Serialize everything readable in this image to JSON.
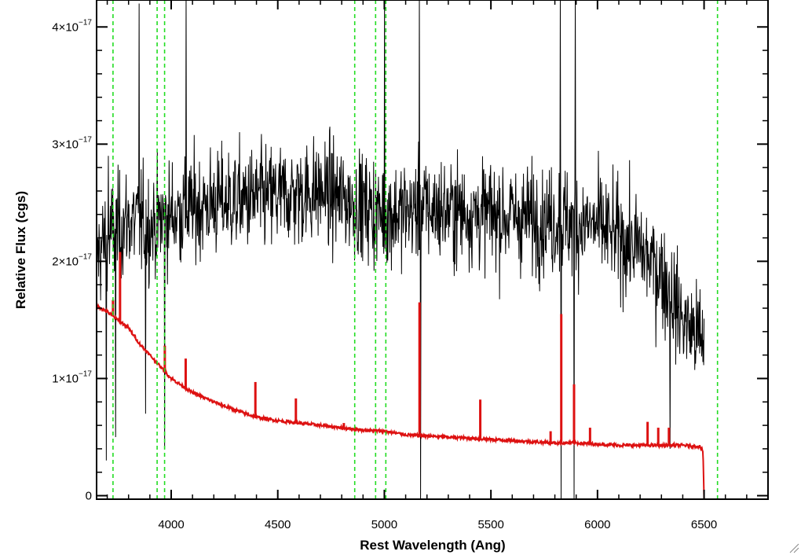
{
  "chart_data": {
    "type": "line",
    "xlabel": "Rest Wavelength (Ang)",
    "ylabel": "Relative Flux (cgs)",
    "xlim": [
      3650,
      6800
    ],
    "ylim": [
      -3e-19,
      4.23e-17
    ],
    "x_ticks": [
      4000,
      4500,
      5000,
      5500,
      6000,
      6500
    ],
    "x_tick_labels": [
      "4000",
      "4500",
      "5000",
      "5500",
      "6000",
      "6500"
    ],
    "y_ticks": [
      0,
      1e-17,
      2e-17,
      3e-17,
      4e-17
    ],
    "y_tick_labels": [
      {
        "zero": "0"
      },
      {
        "mantissa": "1×10",
        "exponent": "−17"
      },
      {
        "mantissa": "2×10",
        "exponent": "−17"
      },
      {
        "mantissa": "3×10",
        "exponent": "−17"
      },
      {
        "mantissa": "4×10",
        "exponent": "−17"
      }
    ],
    "colors": {
      "observed": "#000000",
      "model": "#dd1111",
      "lines": "#22dd22"
    },
    "grid": false,
    "series": [
      {
        "style": "noisy",
        "color": "#000000",
        "x_range": [
          3650,
          6500
        ],
        "envelope": {
          "x": [
            3650,
            3700,
            3800,
            3900,
            4000,
            4200,
            4500,
            4700,
            5000,
            5200,
            5500,
            5800,
            6000,
            6200,
            6300,
            6400,
            6500
          ],
          "y": [
            2.05e-17,
            2.2e-17,
            2.35e-17,
            2.3e-17,
            2.4e-17,
            2.5e-17,
            2.55e-17,
            2.6e-17,
            2.4e-17,
            2.45e-17,
            2.4e-17,
            2.35e-17,
            2.3e-17,
            2.1e-17,
            1.9e-17,
            1.5e-17,
            1.3e-17
          ]
        },
        "spikes": [
          {
            "x": 3695,
            "y": 3e-18
          },
          {
            "x": 3705,
            "y": 2.9e-17
          },
          {
            "x": 3740,
            "y": 5e-18
          },
          {
            "x": 3850,
            "y": 4.2e-17
          },
          {
            "x": 3880,
            "y": 7e-18
          },
          {
            "x": 3970,
            "y": 4e-18
          },
          {
            "x": 4070,
            "y": 4.3e-17
          },
          {
            "x": 5000,
            "y": 4.3e-17
          },
          {
            "x": 5165,
            "y": 4.3e-17
          },
          {
            "x": 5170,
            "y": -3e-19
          },
          {
            "x": 5825,
            "y": 4.3e-17
          },
          {
            "x": 5830,
            "y": -3e-19
          },
          {
            "x": 5890,
            "y": -3e-19
          },
          {
            "x": 5895,
            "y": 4.3e-17
          },
          {
            "x": 6340,
            "y": 4e-18
          }
        ]
      },
      {
        "style": "smooth",
        "color": "#dd1111",
        "x": [
          3650,
          3700,
          3750,
          3800,
          3850,
          3900,
          3950,
          4000,
          4100,
          4200,
          4300,
          4400,
          4500,
          4600,
          4700,
          4800,
          4900,
          5000,
          5100,
          5200,
          5300,
          5400,
          5500,
          5600,
          5700,
          5800,
          5900,
          6000,
          6100,
          6200,
          6300,
          6400,
          6480,
          6495,
          6500,
          6800
        ],
        "y": [
          1.62e-17,
          1.57e-17,
          1.5e-17,
          1.43e-17,
          1.3e-17,
          1.2e-17,
          1.1e-17,
          1e-17,
          8.8e-18,
          8e-18,
          7.3e-18,
          6.7e-18,
          6.4e-18,
          6.2e-18,
          6e-18,
          5.8e-18,
          5.6e-18,
          5.5e-18,
          5.2e-18,
          5.1e-18,
          5e-18,
          4.9e-18,
          4.8e-18,
          4.7e-18,
          4.6e-18,
          4.5e-18,
          4.5e-18,
          4.4e-18,
          4.3e-18,
          4.3e-18,
          4.3e-18,
          4.3e-18,
          4.2e-18,
          3.8e-18,
          -3e-19,
          -3e-19
        ],
        "emission_lines": [
          {
            "x": 3727,
            "y": 1.67e-17
          },
          {
            "x": 3760,
            "y": 2.08e-17
          },
          {
            "x": 3970,
            "y": 1.28e-17
          },
          {
            "x": 4068,
            "y": 1.17e-17
          },
          {
            "x": 4395,
            "y": 9.7e-18
          },
          {
            "x": 4585,
            "y": 8.3e-18
          },
          {
            "x": 4810,
            "y": 6.2e-18
          },
          {
            "x": 5165,
            "y": 1.65e-17
          },
          {
            "x": 5450,
            "y": 8.2e-18
          },
          {
            "x": 5780,
            "y": 5.5e-18
          },
          {
            "x": 5830,
            "y": 1.55e-17
          },
          {
            "x": 5890,
            "y": 9.5e-18
          },
          {
            "x": 5965,
            "y": 5.8e-18
          },
          {
            "x": 6235,
            "y": 6.3e-18
          },
          {
            "x": 6285,
            "y": 5.8e-18
          },
          {
            "x": 6335,
            "y": 5.8e-18
          }
        ]
      }
    ],
    "vertical_lines": [
      3727,
      3934,
      3969,
      4861,
      4959,
      5007,
      6563
    ]
  },
  "ui": {
    "resize_grip": "resize-grip-icon"
  }
}
